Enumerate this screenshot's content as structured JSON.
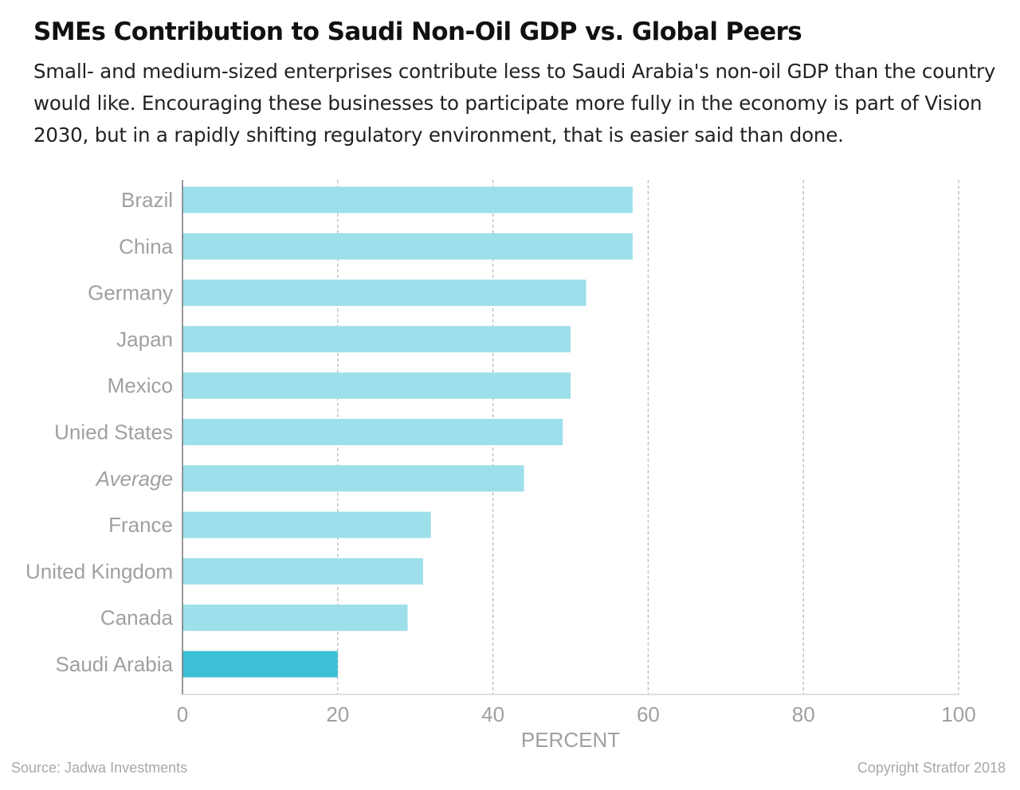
{
  "header": {
    "title": "SMEs Contribution to Saudi Non-Oil GDP vs. Global Peers",
    "subtitle": "Small- and medium-sized enterprises contribute less to Saudi Arabia's non-oil GDP than the country would like. Encouraging these businesses to participate more fully in the economy is part of Vision 2030, but in a rapidly shifting regulatory environment, that is easier said than done."
  },
  "footer": {
    "source": "Source: Jadwa Investments",
    "copyright": "Copyright Stratfor 2018"
  },
  "chart_data": {
    "type": "bar",
    "orientation": "horizontal",
    "categories": [
      "Brazil",
      "China",
      "Germany",
      "Japan",
      "Mexico",
      "Unied States",
      "Average",
      "France",
      "United Kingdom",
      "Canada",
      "Saudi Arabia"
    ],
    "values": [
      58,
      58,
      52,
      50,
      50,
      49,
      44,
      32,
      31,
      29,
      20
    ],
    "italic_categories": [
      "Average"
    ],
    "highlight_category": "Saudi Arabia",
    "xlabel": "PERCENT",
    "ylabel": "",
    "xlim": [
      0,
      100
    ],
    "xticks": [
      0,
      20,
      40,
      60,
      80,
      100
    ],
    "grid": "vertical-dashed",
    "colors": {
      "bar": "#9ddfea",
      "highlight": "#3dbfd6",
      "grid": "#bbbbbb",
      "axis": "#777777",
      "label": "#a0a0a0"
    }
  }
}
